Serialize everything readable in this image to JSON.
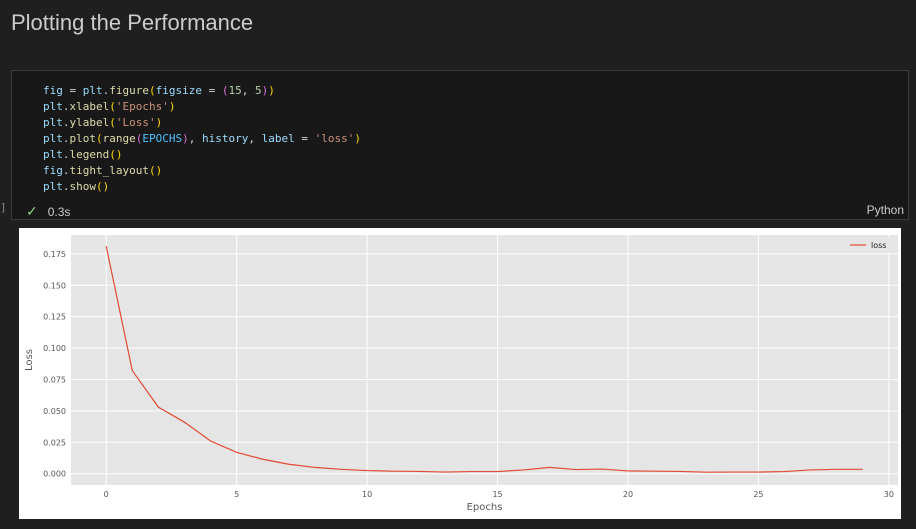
{
  "heading": "Plotting the Performance",
  "cell": {
    "code_lines": [
      [
        [
          "v",
          "fig"
        ],
        [
          "o",
          " = "
        ],
        [
          "v",
          "plt"
        ],
        [
          "o",
          "."
        ],
        [
          "f",
          "figure"
        ],
        [
          "p",
          "("
        ],
        [
          "v",
          "figsize"
        ],
        [
          "o",
          " = "
        ],
        [
          "p2",
          "("
        ],
        [
          "n",
          "15"
        ],
        [
          "o",
          ", "
        ],
        [
          "n",
          "5"
        ],
        [
          "p2",
          ")"
        ],
        [
          "p",
          ")"
        ]
      ],
      [
        [
          "v",
          "plt"
        ],
        [
          "o",
          "."
        ],
        [
          "f",
          "xlabel"
        ],
        [
          "p",
          "("
        ],
        [
          "s",
          "'Epochs'"
        ],
        [
          "p",
          ")"
        ]
      ],
      [
        [
          "v",
          "plt"
        ],
        [
          "o",
          "."
        ],
        [
          "f",
          "ylabel"
        ],
        [
          "p",
          "("
        ],
        [
          "s",
          "'Loss'"
        ],
        [
          "p",
          ")"
        ]
      ],
      [
        [
          "v",
          "plt"
        ],
        [
          "o",
          "."
        ],
        [
          "f",
          "plot"
        ],
        [
          "p",
          "("
        ],
        [
          "f",
          "range"
        ],
        [
          "p2",
          "("
        ],
        [
          "b",
          "EPOCHS"
        ],
        [
          "p2",
          ")"
        ],
        [
          "o",
          ", "
        ],
        [
          "v",
          "history"
        ],
        [
          "o",
          ", "
        ],
        [
          "v",
          "label"
        ],
        [
          "o",
          " = "
        ],
        [
          "s",
          "'loss'"
        ],
        [
          "p",
          ")"
        ]
      ],
      [
        [
          "v",
          "plt"
        ],
        [
          "o",
          "."
        ],
        [
          "f",
          "legend"
        ],
        [
          "p",
          "()"
        ]
      ],
      [
        [
          "v",
          "fig"
        ],
        [
          "o",
          "."
        ],
        [
          "f",
          "tight_layout"
        ],
        [
          "p",
          "()"
        ]
      ],
      [
        [
          "v",
          "plt"
        ],
        [
          "o",
          "."
        ],
        [
          "f",
          "show"
        ],
        [
          "p",
          "()"
        ]
      ]
    ],
    "status_time": "0.3s",
    "language": "Python",
    "check_icon": "check-icon",
    "gutter_bracket": "]"
  },
  "chart_data": {
    "type": "line",
    "xlabel": "Epochs",
    "ylabel": "Loss",
    "xlim": [
      -1.35,
      30.35
    ],
    "ylim": [
      -0.009,
      0.19
    ],
    "x_ticks": [
      0,
      5,
      10,
      15,
      20,
      25,
      30
    ],
    "x_tick_labels": [
      "0",
      "5",
      "10",
      "15",
      "20",
      "25",
      "30"
    ],
    "y_ticks": [
      0.0,
      0.025,
      0.05,
      0.075,
      0.1,
      0.125,
      0.15,
      0.175
    ],
    "y_tick_labels": [
      "0.000",
      "0.025",
      "0.050",
      "0.075",
      "0.100",
      "0.125",
      "0.150",
      "0.175"
    ],
    "grid": true,
    "legend_position": "top-right",
    "colors": {
      "line": "#e24a33",
      "plot_bg": "#e5e5e5",
      "grid": "#ffffff",
      "tick_text": "#555555"
    },
    "series": [
      {
        "name": "loss",
        "x": [
          0,
          1,
          2,
          3,
          4,
          5,
          6,
          7,
          8,
          9,
          10,
          11,
          12,
          13,
          14,
          15,
          16,
          17,
          18,
          19,
          20,
          21,
          22,
          23,
          24,
          25,
          26,
          27,
          28,
          29
        ],
        "values": [
          0.181,
          0.082,
          0.053,
          0.041,
          0.026,
          0.017,
          0.0115,
          0.0075,
          0.005,
          0.0035,
          0.0025,
          0.002,
          0.0018,
          0.0013,
          0.0017,
          0.0017,
          0.003,
          0.005,
          0.0033,
          0.0037,
          0.0022,
          0.002,
          0.0018,
          0.0012,
          0.0013,
          0.0013,
          0.0017,
          0.003,
          0.0035,
          0.0035
        ]
      }
    ]
  }
}
